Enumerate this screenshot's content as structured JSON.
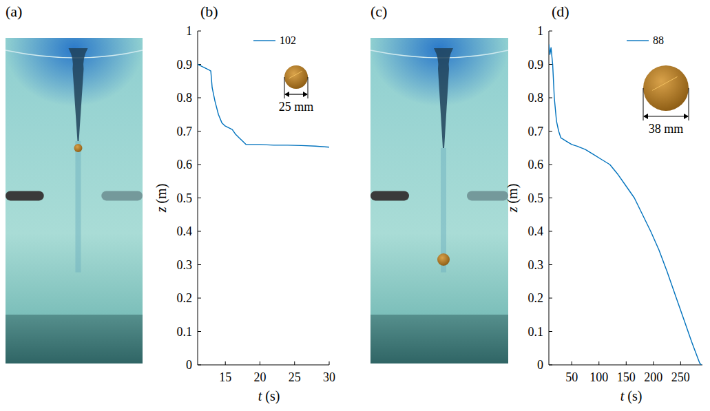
{
  "chart_data": [
    {
      "type": "photo",
      "title": "(a)"
    },
    {
      "type": "line",
      "title": "(b)",
      "x_label": "t (s)",
      "y_label": "z (m)",
      "xlim": [
        11,
        30
      ],
      "xticks": [
        15,
        20,
        25,
        30
      ],
      "ylim": [
        0,
        1
      ],
      "yticks": [
        0,
        0.1,
        0.2,
        0.3,
        0.4,
        0.5,
        0.6,
        0.7,
        0.8,
        0.9,
        1
      ],
      "grid": false,
      "legend": "upper right",
      "annotation": "25 mm",
      "series": [
        {
          "name": "102",
          "color": "#0072bd",
          "x": [
            11,
            11.5,
            12,
            12.5,
            12.9,
            13.1,
            13.5,
            14,
            14.5,
            15,
            15.5,
            16,
            16.5,
            17,
            17.5,
            18,
            19,
            20,
            22,
            24,
            26,
            28,
            30
          ],
          "values": [
            0.9,
            0.895,
            0.89,
            0.885,
            0.88,
            0.83,
            0.79,
            0.75,
            0.725,
            0.715,
            0.71,
            0.705,
            0.69,
            0.68,
            0.67,
            0.66,
            0.66,
            0.66,
            0.658,
            0.658,
            0.657,
            0.655,
            0.652
          ]
        }
      ]
    },
    {
      "type": "photo",
      "title": "(c)"
    },
    {
      "type": "line",
      "title": "(d)",
      "x_label": "t (s)",
      "y_label": "z (m)",
      "xlim": [
        8,
        290
      ],
      "xticks": [
        50,
        100,
        150,
        200,
        250
      ],
      "ylim": [
        0,
        1
      ],
      "yticks": [
        0,
        0.1,
        0.2,
        0.3,
        0.4,
        0.5,
        0.6,
        0.7,
        0.8,
        0.9,
        1
      ],
      "grid": false,
      "legend": "upper right",
      "annotation": "38 mm",
      "series": [
        {
          "name": "88",
          "color": "#0072bd",
          "x": [
            8,
            10,
            12,
            15,
            18,
            22,
            26,
            30,
            40,
            50,
            60,
            75,
            90,
            105,
            120,
            135,
            150,
            165,
            180,
            195,
            210,
            225,
            240,
            255,
            270,
            285,
            288
          ],
          "values": [
            0.96,
            0.93,
            0.95,
            0.9,
            0.8,
            0.73,
            0.7,
            0.68,
            0.67,
            0.66,
            0.655,
            0.645,
            0.63,
            0.615,
            0.6,
            0.57,
            0.535,
            0.5,
            0.45,
            0.4,
            0.345,
            0.28,
            0.21,
            0.14,
            0.07,
            0.005,
            0
          ]
        }
      ]
    }
  ]
}
